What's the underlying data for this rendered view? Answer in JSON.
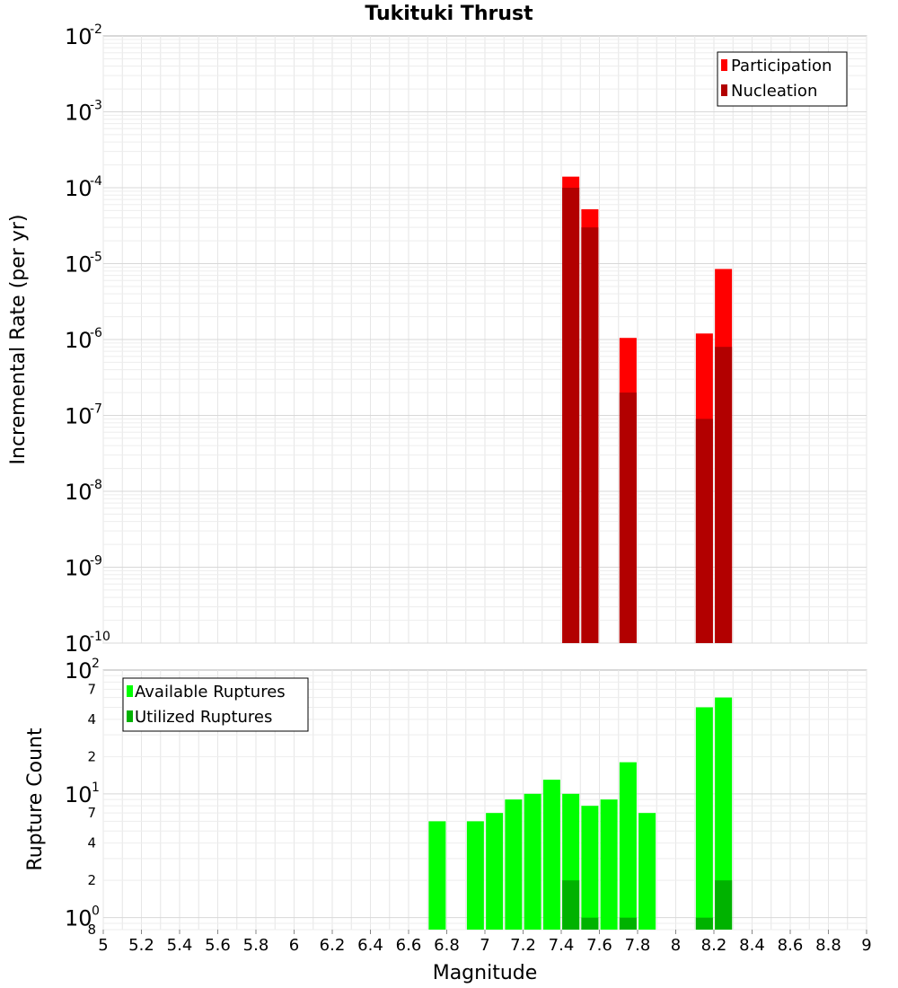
{
  "chart_data": [
    {
      "type": "bar",
      "title": "Tukituki Thrust",
      "xlabel": "",
      "ylabel": "Incremental Rate (per yr)",
      "yscale": "log",
      "ylim_exp": [
        -10,
        -2
      ],
      "xlim": [
        5,
        9
      ],
      "grid": true,
      "legend_position": "top-right",
      "series": [
        {
          "name": "Participation",
          "color": "#ff0000",
          "points": [
            {
              "x": 7.45,
              "y": 0.00014
            },
            {
              "x": 7.55,
              "y": 5.2e-05
            },
            {
              "x": 7.75,
              "y": 1.05e-06
            },
            {
              "x": 8.15,
              "y": 1.2e-06
            },
            {
              "x": 8.25,
              "y": 8.5e-06
            }
          ]
        },
        {
          "name": "Nucleation",
          "color": "#b20000",
          "points": [
            {
              "x": 7.45,
              "y": 0.0001
            },
            {
              "x": 7.55,
              "y": 3e-05
            },
            {
              "x": 7.75,
              "y": 2e-07
            },
            {
              "x": 8.15,
              "y": 9e-08
            },
            {
              "x": 8.25,
              "y": 8e-07
            }
          ]
        }
      ]
    },
    {
      "type": "bar",
      "title": "",
      "xlabel": "Magnitude",
      "ylabel": "Rupture Count",
      "yscale": "log",
      "ylim": [
        0.8,
        100
      ],
      "xlim": [
        5,
        9
      ],
      "grid": true,
      "legend_position": "top-left",
      "series": [
        {
          "name": "Available Ruptures",
          "color": "#00ff00",
          "points": [
            {
              "x": 6.75,
              "y": 6
            },
            {
              "x": 6.95,
              "y": 6
            },
            {
              "x": 7.05,
              "y": 7
            },
            {
              "x": 7.15,
              "y": 9
            },
            {
              "x": 7.25,
              "y": 10
            },
            {
              "x": 7.35,
              "y": 13
            },
            {
              "x": 7.45,
              "y": 10
            },
            {
              "x": 7.55,
              "y": 8
            },
            {
              "x": 7.65,
              "y": 9
            },
            {
              "x": 7.75,
              "y": 18
            },
            {
              "x": 7.85,
              "y": 7
            },
            {
              "x": 8.15,
              "y": 50
            },
            {
              "x": 8.25,
              "y": 60
            }
          ]
        },
        {
          "name": "Utilized Ruptures",
          "color": "#00b200",
          "points": [
            {
              "x": 7.45,
              "y": 2
            },
            {
              "x": 7.55,
              "y": 1
            },
            {
              "x": 7.75,
              "y": 1
            },
            {
              "x": 8.15,
              "y": 1
            },
            {
              "x": 8.25,
              "y": 2
            }
          ]
        }
      ]
    }
  ],
  "x_ticks": [
    "5",
    "5.2",
    "5.4",
    "5.6",
    "5.8",
    "6",
    "6.2",
    "6.4",
    "6.6",
    "6.8",
    "7",
    "7.2",
    "7.4",
    "7.6",
    "7.8",
    "8",
    "8.2",
    "8.4",
    "8.6",
    "8.8",
    "9"
  ],
  "top_y_ticks": [
    {
      "base": "10",
      "exp": "-2",
      "value": -2
    },
    {
      "base": "10",
      "exp": "-3",
      "value": -3
    },
    {
      "base": "10",
      "exp": "-4",
      "value": -4
    },
    {
      "base": "10",
      "exp": "-5",
      "value": -5
    },
    {
      "base": "10",
      "exp": "-6",
      "value": -6
    },
    {
      "base": "10",
      "exp": "-7",
      "value": -7
    },
    {
      "base": "10",
      "exp": "-8",
      "value": -8
    },
    {
      "base": "10",
      "exp": "-9",
      "value": -9
    },
    {
      "base": "10",
      "exp": "-10",
      "value": -10
    }
  ],
  "bottom_y_ticks": [
    {
      "base": "10",
      "exp": "2",
      "value": 100
    },
    {
      "base": "10",
      "exp": "1",
      "value": 10
    },
    {
      "base": "10",
      "exp": "0",
      "value": 1
    }
  ],
  "bottom_y_minor_ticks": [
    {
      "label": "7",
      "value": 70
    },
    {
      "label": "4",
      "value": 40
    },
    {
      "label": "2",
      "value": 20
    },
    {
      "label": "7",
      "value": 7
    },
    {
      "label": "4",
      "value": 4
    },
    {
      "label": "2",
      "value": 2
    },
    {
      "label": "8",
      "value": 0.8
    }
  ]
}
